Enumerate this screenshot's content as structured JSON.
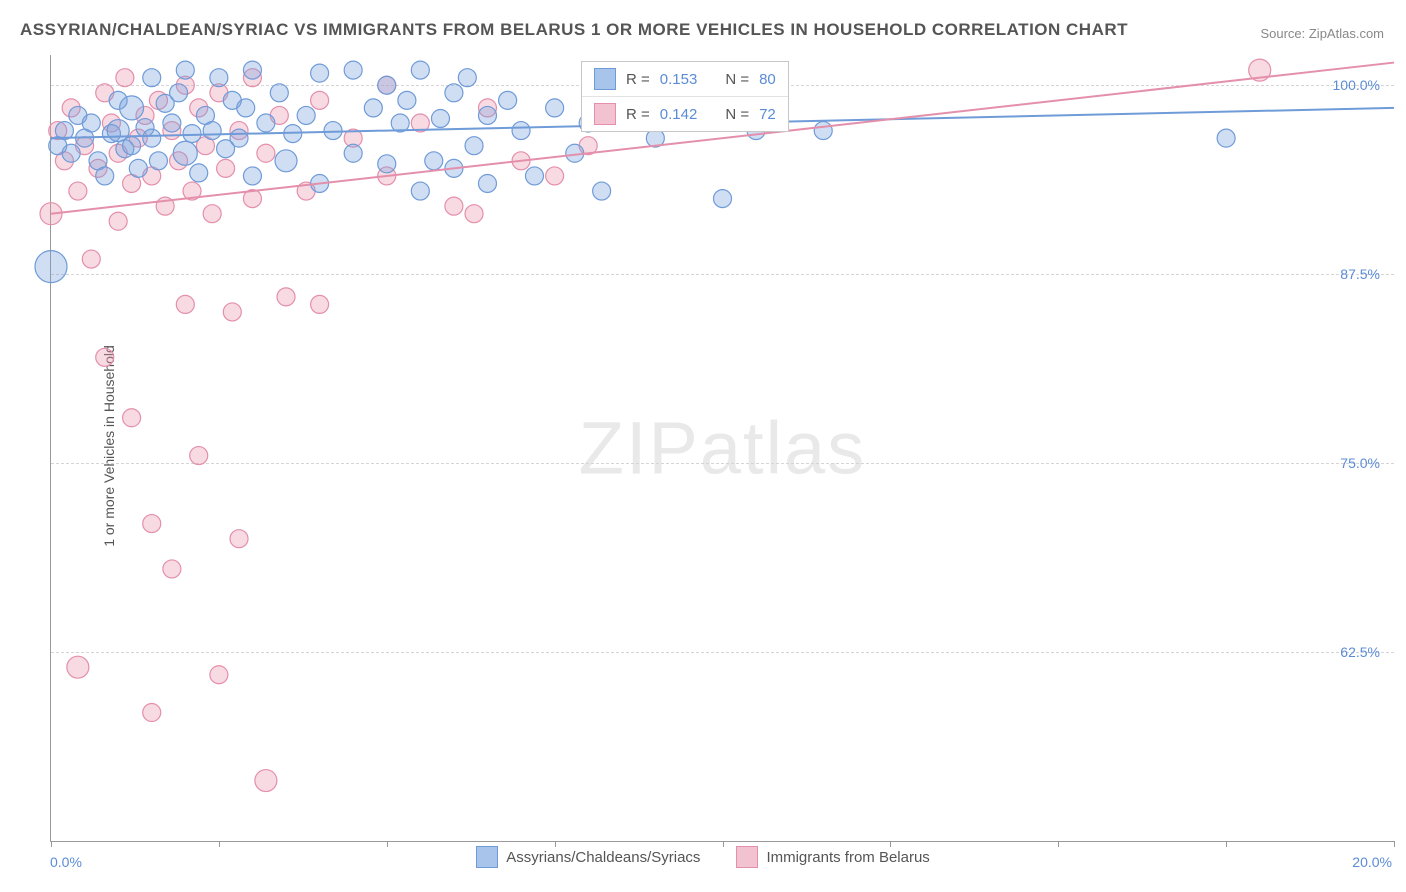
{
  "title": "ASSYRIAN/CHALDEAN/SYRIAC VS IMMIGRANTS FROM BELARUS 1 OR MORE VEHICLES IN HOUSEHOLD CORRELATION CHART",
  "source": "Source: ZipAtlas.com",
  "watermark": "ZIPatlas",
  "yaxis_label": "1 or more Vehicles in Household",
  "chart": {
    "type": "scatter",
    "xlim": [
      0,
      20
    ],
    "ylim": [
      50,
      102
    ],
    "x_ticks": [
      0,
      2.5,
      5,
      7.5,
      10,
      12.5,
      15,
      17.5,
      20
    ],
    "x_tick_labels": {
      "0": "0.0%",
      "20": "20.0%"
    },
    "y_gridlines": [
      62.5,
      75,
      87.5,
      100
    ],
    "y_tick_labels": {
      "62.5": "62.5%",
      "75": "75.0%",
      "87.5": "87.5%",
      "100": "100.0%"
    },
    "grid_color": "#d5d5d5",
    "axis_color": "#999999",
    "background_color": "#ffffff",
    "point_radius": 9,
    "point_radius_large": 14,
    "line_width": 2,
    "series": [
      {
        "name": "Assyrians/Chaldeans/Syriacs",
        "color_fill": "rgba(120,160,220,0.35)",
        "color_stroke": "#6f9bd8",
        "swatch_fill": "#a9c4ea",
        "swatch_border": "#6f9bd8",
        "r_value": "0.153",
        "n_value": "80",
        "trend": {
          "x1": 0,
          "y1": 96.5,
          "x2": 20,
          "y2": 98.5
        },
        "points": [
          [
            0.0,
            88.0,
            16
          ],
          [
            0.1,
            96.0,
            9
          ],
          [
            0.2,
            97.0,
            9
          ],
          [
            0.3,
            95.5,
            9
          ],
          [
            0.4,
            98.0,
            9
          ],
          [
            0.5,
            96.5,
            9
          ],
          [
            0.6,
            97.5,
            9
          ],
          [
            0.7,
            95.0,
            9
          ],
          [
            0.8,
            94.0,
            9
          ],
          [
            0.9,
            96.8,
            9
          ],
          [
            1.0,
            99.0,
            9
          ],
          [
            1.0,
            97.0,
            11
          ],
          [
            1.1,
            95.8,
            9
          ],
          [
            1.2,
            98.5,
            12
          ],
          [
            1.2,
            96.0,
            9
          ],
          [
            1.3,
            94.5,
            9
          ],
          [
            1.4,
            97.2,
            9
          ],
          [
            1.5,
            100.5,
            9
          ],
          [
            1.5,
            96.5,
            9
          ],
          [
            1.6,
            95.0,
            9
          ],
          [
            1.7,
            98.8,
            9
          ],
          [
            1.8,
            97.5,
            9
          ],
          [
            1.9,
            99.5,
            9
          ],
          [
            2.0,
            101.0,
            9
          ],
          [
            2.0,
            95.5,
            12
          ],
          [
            2.1,
            96.8,
            9
          ],
          [
            2.2,
            94.2,
            9
          ],
          [
            2.3,
            98.0,
            9
          ],
          [
            2.4,
            97.0,
            9
          ],
          [
            2.5,
            100.5,
            9
          ],
          [
            2.6,
            95.8,
            9
          ],
          [
            2.7,
            99.0,
            9
          ],
          [
            2.8,
            96.5,
            9
          ],
          [
            2.9,
            98.5,
            9
          ],
          [
            3.0,
            101.0,
            9
          ],
          [
            3.0,
            94.0,
            9
          ],
          [
            3.2,
            97.5,
            9
          ],
          [
            3.4,
            99.5,
            9
          ],
          [
            3.5,
            95.0,
            11
          ],
          [
            3.6,
            96.8,
            9
          ],
          [
            3.8,
            98.0,
            9
          ],
          [
            4.0,
            100.8,
            9
          ],
          [
            4.0,
            93.5,
            9
          ],
          [
            4.2,
            97.0,
            9
          ],
          [
            4.5,
            101.0,
            9
          ],
          [
            4.5,
            95.5,
            9
          ],
          [
            4.8,
            98.5,
            9
          ],
          [
            5.0,
            100.0,
            9
          ],
          [
            5.0,
            94.8,
            9
          ],
          [
            5.2,
            97.5,
            9
          ],
          [
            5.3,
            99.0,
            9
          ],
          [
            5.5,
            101.0,
            9
          ],
          [
            5.5,
            93.0,
            9
          ],
          [
            5.7,
            95.0,
            9
          ],
          [
            5.8,
            97.8,
            9
          ],
          [
            6.0,
            99.5,
            9
          ],
          [
            6.0,
            94.5,
            9
          ],
          [
            6.2,
            100.5,
            9
          ],
          [
            6.3,
            96.0,
            9
          ],
          [
            6.5,
            98.0,
            9
          ],
          [
            6.5,
            93.5,
            9
          ],
          [
            6.8,
            99.0,
            9
          ],
          [
            7.0,
            97.0,
            9
          ],
          [
            7.2,
            94.0,
            9
          ],
          [
            7.5,
            98.5,
            9
          ],
          [
            7.8,
            95.5,
            9
          ],
          [
            8.0,
            97.5,
            9
          ],
          [
            8.2,
            93.0,
            9
          ],
          [
            9.0,
            96.5,
            9
          ],
          [
            9.5,
            98.0,
            9
          ],
          [
            10.0,
            92.5,
            9
          ],
          [
            10.5,
            97.0,
            9
          ],
          [
            11.5,
            97.0,
            9
          ],
          [
            17.5,
            96.5,
            9
          ]
        ]
      },
      {
        "name": "Immigrants from Belarus",
        "color_fill": "rgba(235,150,175,0.35)",
        "color_stroke": "#e48fab",
        "swatch_fill": "#f3c2d1",
        "swatch_border": "#e48fab",
        "r_value": "0.142",
        "n_value": "72",
        "trend": {
          "x1": 0,
          "y1": 91.5,
          "x2": 20,
          "y2": 101.5
        },
        "points": [
          [
            0.0,
            91.5,
            11
          ],
          [
            0.1,
            97.0,
            9
          ],
          [
            0.2,
            95.0,
            9
          ],
          [
            0.3,
            98.5,
            9
          ],
          [
            0.4,
            93.0,
            9
          ],
          [
            0.4,
            61.5,
            11
          ],
          [
            0.5,
            96.0,
            9
          ],
          [
            0.6,
            88.5,
            9
          ],
          [
            0.7,
            94.5,
            9
          ],
          [
            0.8,
            99.5,
            9
          ],
          [
            0.8,
            82.0,
            9
          ],
          [
            0.9,
            97.5,
            9
          ],
          [
            1.0,
            95.5,
            9
          ],
          [
            1.0,
            91.0,
            9
          ],
          [
            1.1,
            100.5,
            9
          ],
          [
            1.2,
            93.5,
            9
          ],
          [
            1.2,
            78.0,
            9
          ],
          [
            1.3,
            96.5,
            9
          ],
          [
            1.4,
            98.0,
            9
          ],
          [
            1.5,
            94.0,
            9
          ],
          [
            1.5,
            71.0,
            9
          ],
          [
            1.5,
            58.5,
            9
          ],
          [
            1.6,
            99.0,
            9
          ],
          [
            1.7,
            92.0,
            9
          ],
          [
            1.8,
            97.0,
            9
          ],
          [
            1.8,
            68.0,
            9
          ],
          [
            1.9,
            95.0,
            9
          ],
          [
            2.0,
            100.0,
            9
          ],
          [
            2.0,
            85.5,
            9
          ],
          [
            2.1,
            93.0,
            9
          ],
          [
            2.2,
            98.5,
            9
          ],
          [
            2.2,
            75.5,
            9
          ],
          [
            2.3,
            96.0,
            9
          ],
          [
            2.4,
            91.5,
            9
          ],
          [
            2.5,
            99.5,
            9
          ],
          [
            2.5,
            61.0,
            9
          ],
          [
            2.6,
            94.5,
            9
          ],
          [
            2.7,
            85.0,
            9
          ],
          [
            2.8,
            97.0,
            9
          ],
          [
            2.8,
            70.0,
            9
          ],
          [
            3.0,
            100.5,
            9
          ],
          [
            3.0,
            92.5,
            9
          ],
          [
            3.2,
            95.5,
            9
          ],
          [
            3.2,
            54.0,
            11
          ],
          [
            3.4,
            98.0,
            9
          ],
          [
            3.5,
            86.0,
            9
          ],
          [
            3.8,
            93.0,
            9
          ],
          [
            4.0,
            99.0,
            9
          ],
          [
            4.0,
            85.5,
            9
          ],
          [
            4.5,
            96.5,
            9
          ],
          [
            5.0,
            100.0,
            9
          ],
          [
            5.0,
            94.0,
            9
          ],
          [
            5.5,
            97.5,
            9
          ],
          [
            6.0,
            92.0,
            9
          ],
          [
            6.3,
            91.5,
            9
          ],
          [
            6.5,
            98.5,
            9
          ],
          [
            7.0,
            95.0,
            9
          ],
          [
            7.5,
            94.0,
            9
          ],
          [
            8.0,
            96.0,
            9
          ],
          [
            18.0,
            101.0,
            11
          ]
        ]
      }
    ]
  },
  "legend_inset": {
    "label_r": "R =",
    "label_n": "N ="
  },
  "colors": {
    "title": "#555555",
    "source": "#888888",
    "axis_label": "#555555",
    "tick_value": "#5b8cd6",
    "watermark": "#e9e9e9"
  }
}
